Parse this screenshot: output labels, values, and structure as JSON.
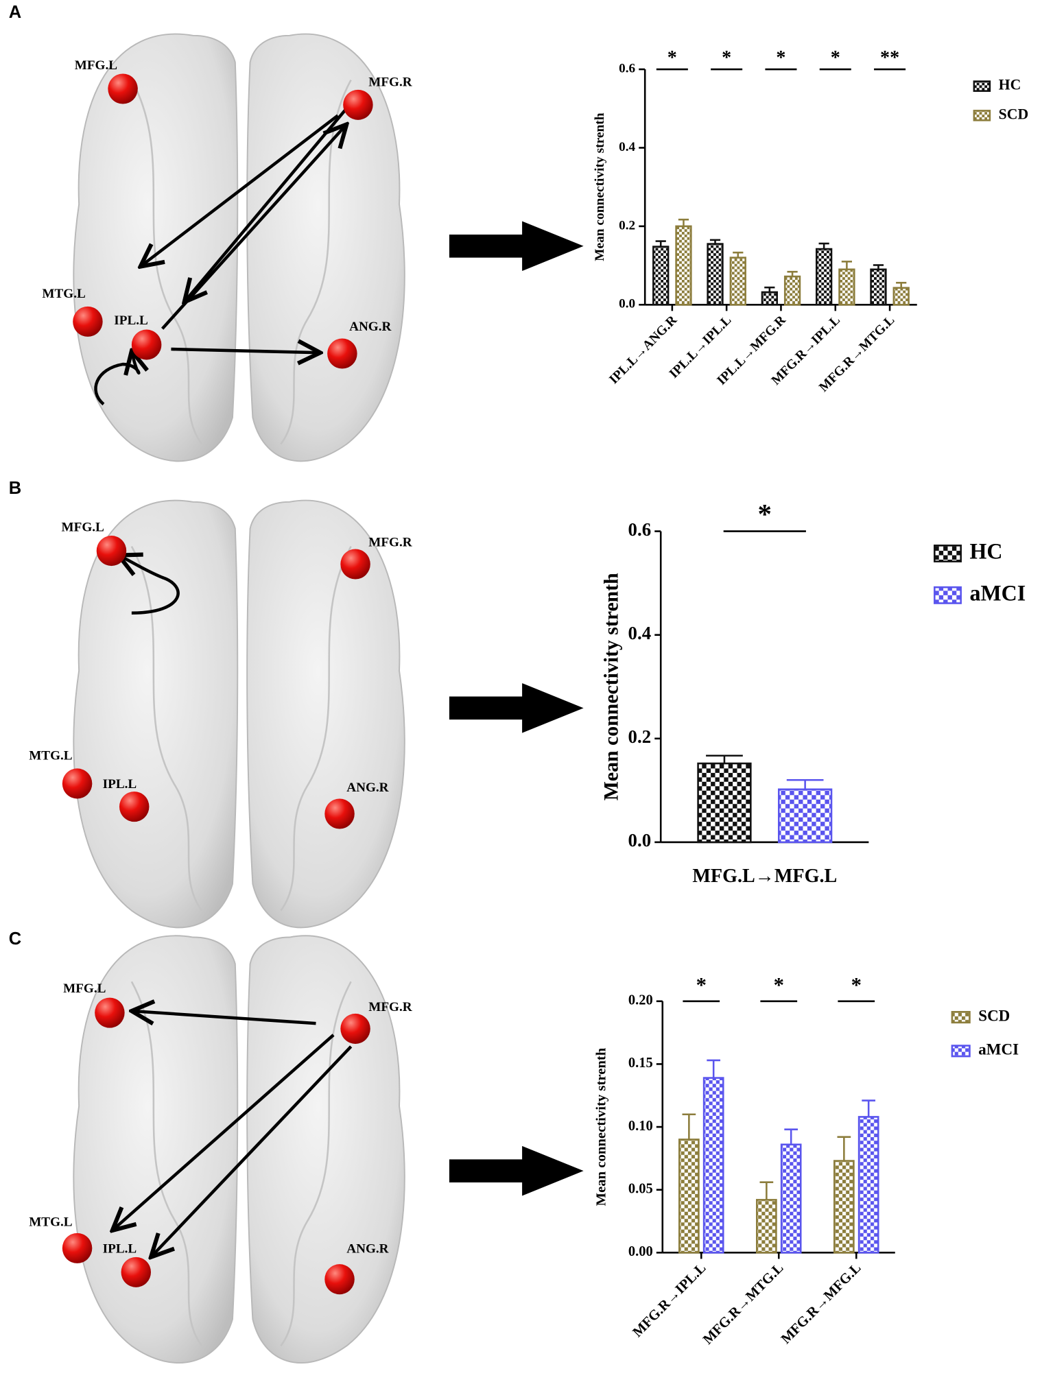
{
  "panels": [
    {
      "label": "A",
      "nodes": [
        "MFG.L",
        "MFG.R",
        "MTG.L",
        "IPL.L",
        "ANG.R"
      ]
    },
    {
      "label": "B",
      "nodes": [
        "MFG.L",
        "MFG.R",
        "MTG.L",
        "IPL.L",
        "ANG.R"
      ]
    },
    {
      "label": "C",
      "nodes": [
        "MFG.L",
        "MFG.R",
        "MTG.L",
        "IPL.L",
        "ANG.R"
      ]
    }
  ],
  "chart_data": [
    {
      "type": "bar",
      "ylabel": "Mean connectivity strenth",
      "categories": [
        "IPL.L→ANG.R",
        "IPL.L→IPL.L",
        "IPL.L→MFG.R",
        "MFG.R→IPL.L",
        "MFG.R→MTG.L"
      ],
      "series": [
        {
          "name": "HC",
          "color": "#111111",
          "values": [
            0.148,
            0.155,
            0.032,
            0.142,
            0.09
          ],
          "errors": [
            0.014,
            0.01,
            0.012,
            0.014,
            0.011
          ]
        },
        {
          "name": "SCD",
          "color": "#8c7d3c",
          "values": [
            0.2,
            0.12,
            0.072,
            0.09,
            0.043
          ],
          "errors": [
            0.017,
            0.013,
            0.012,
            0.02,
            0.013
          ]
        }
      ],
      "ylim": [
        0,
        0.6
      ],
      "yticks": [
        {
          "value": 0,
          "label": "0.0"
        },
        0.2,
        0.4,
        0.6
      ],
      "significance": [
        "*",
        "*",
        "*",
        "*",
        "**"
      ]
    },
    {
      "type": "bar",
      "ylabel": "Mean connectivity strenth",
      "categories": [
        "MFG.L→MFG.L"
      ],
      "series": [
        {
          "name": "HC",
          "color": "#111111",
          "values": [
            0.152
          ],
          "errors": [
            0.015
          ]
        },
        {
          "name": "aMCI",
          "color": "#5a55ee",
          "values": [
            0.102
          ],
          "errors": [
            0.018
          ]
        }
      ],
      "ylim": [
        0,
        0.6
      ],
      "yticks": [
        {
          "value": 0,
          "label": "0.0"
        },
        0.2,
        0.4,
        0.6
      ],
      "significance": [
        "*"
      ]
    },
    {
      "type": "bar",
      "ylabel": "Mean connectivity strenth",
      "categories": [
        "MFG.R→IPL.L",
        "MFG.R→MTG.L",
        "MFG.R→MFG.L"
      ],
      "series": [
        {
          "name": "SCD",
          "color": "#8c7d3c",
          "values": [
            0.09,
            0.042,
            0.073
          ],
          "errors": [
            0.02,
            0.014,
            0.019
          ]
        },
        {
          "name": "aMCI",
          "color": "#5a55ee",
          "values": [
            0.139,
            0.086,
            0.108
          ],
          "errors": [
            0.014,
            0.012,
            0.013
          ]
        }
      ],
      "ylim": [
        0,
        0.2
      ],
      "yticks": [
        {
          "value": 0,
          "label": "0.00"
        },
        {
          "value": 0.05,
          "label": "0.05"
        },
        {
          "value": 0.1,
          "label": "0.10"
        },
        {
          "value": 0.15,
          "label": "0.15"
        },
        {
          "value": 0.2,
          "label": "0.20"
        }
      ],
      "significance": [
        "*",
        "*",
        "*"
      ]
    }
  ]
}
